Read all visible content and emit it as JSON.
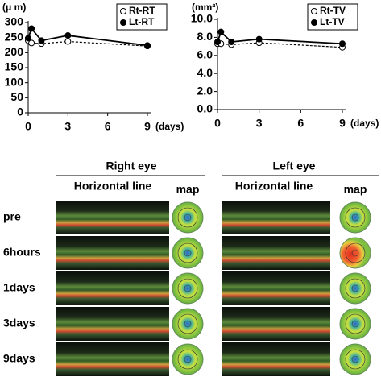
{
  "chart_data": [
    {
      "type": "line",
      "y_label": "(μ m)",
      "x_label": "(days)",
      "x": [
        0,
        0.25,
        1,
        3,
        9
      ],
      "series": [
        {
          "name": "Rt-RT",
          "color": "#000000",
          "values": [
            240,
            232,
            230,
            237,
            222
          ]
        },
        {
          "name": "Lt-RT",
          "color": "#000000",
          "values": [
            248,
            280,
            240,
            257,
            224
          ]
        }
      ],
      "xlim": [
        0,
        9
      ],
      "xticks": [
        0,
        3,
        6,
        9
      ],
      "ylim": [
        0,
        300
      ],
      "yticks": [
        0,
        50,
        100,
        150,
        200,
        250,
        300
      ]
    },
    {
      "type": "line",
      "y_label": "(mm²)",
      "x_label": "(days)",
      "x": [
        0,
        0.25,
        1,
        3,
        9
      ],
      "series": [
        {
          "name": "Rt-TV",
          "color": "#000000",
          "values": [
            7.3,
            7.3,
            7.2,
            7.4,
            6.9
          ]
        },
        {
          "name": "Lt-TV",
          "color": "#000000",
          "values": [
            7.5,
            8.6,
            7.5,
            7.8,
            7.3
          ]
        }
      ],
      "xlim": [
        0,
        9
      ],
      "xticks": [
        0,
        3,
        6,
        9
      ],
      "ylim": [
        0,
        10
      ],
      "yticks": [
        {
          "value": 0,
          "label": "0.0"
        },
        {
          "value": 2,
          "label": "2.0"
        },
        {
          "value": 4,
          "label": "4.0"
        },
        {
          "value": 6,
          "label": "6.0"
        },
        {
          "value": 8,
          "label": "8.0"
        },
        {
          "value": 10,
          "label": "10.0"
        }
      ]
    }
  ],
  "panel": {
    "eyes": [
      "Right eye",
      "Left eye"
    ],
    "columns": [
      "Horizontal line",
      "map",
      "Horizontal line",
      "map"
    ],
    "rows": [
      "pre",
      "6hours",
      "1days",
      "3days",
      "9days"
    ]
  }
}
